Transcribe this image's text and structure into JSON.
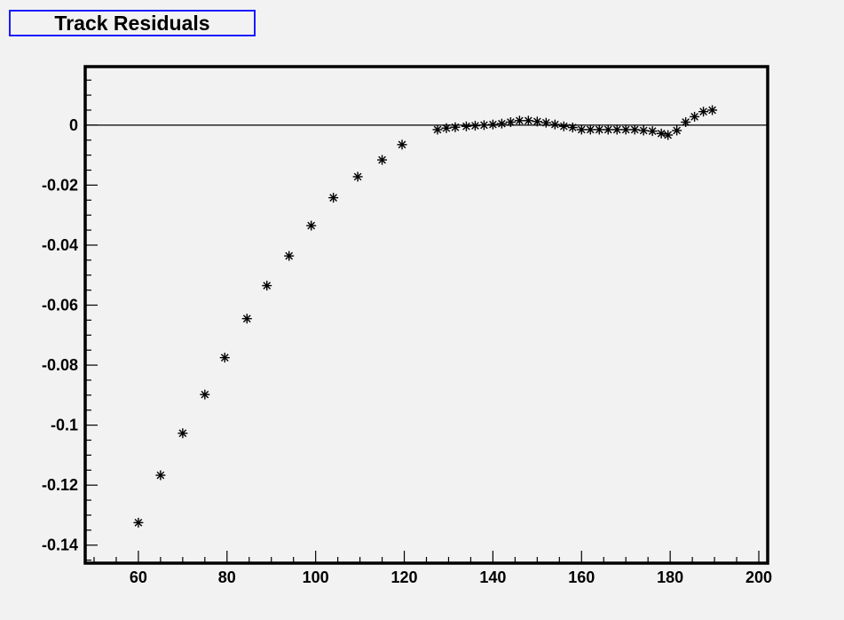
{
  "title": "Track Residuals",
  "chart_data": {
    "type": "scatter",
    "title": "Track Residuals",
    "xlabel": "",
    "ylabel": "",
    "xlim": [
      48,
      202
    ],
    "ylim": [
      -0.146,
      0.0195
    ],
    "grid": false,
    "marker": "asterisk",
    "zero_line": true,
    "x_ticks": [
      "60",
      "80",
      "100",
      "120",
      "140",
      "160",
      "180",
      "200"
    ],
    "y_ticks": [
      "0",
      "-0.02",
      "-0.04",
      "-0.06",
      "-0.08",
      "-0.1",
      "-0.12",
      "-0.14"
    ],
    "points": [
      [
        60,
        -0.1325
      ],
      [
        65,
        -0.1167
      ],
      [
        70,
        -0.1027
      ],
      [
        75,
        -0.0898
      ],
      [
        79.5,
        -0.0775
      ],
      [
        84.5,
        -0.0645
      ],
      [
        89,
        -0.0535
      ],
      [
        94,
        -0.0436
      ],
      [
        99,
        -0.0335
      ],
      [
        104,
        -0.0242
      ],
      [
        109.5,
        -0.0172
      ],
      [
        115,
        -0.0116
      ],
      [
        119.5,
        -0.0065
      ],
      [
        127.5,
        -0.0015
      ],
      [
        129.5,
        -0.001
      ],
      [
        131.5,
        -0.0007
      ],
      [
        134,
        -0.0004
      ],
      [
        136,
        -0.0002
      ],
      [
        138,
        0.0
      ],
      [
        140,
        0.0002
      ],
      [
        142,
        0.0005
      ],
      [
        144,
        0.001
      ],
      [
        146,
        0.0015
      ],
      [
        148,
        0.0015
      ],
      [
        150,
        0.0012
      ],
      [
        152,
        0.0008
      ],
      [
        154,
        0.0002
      ],
      [
        156,
        -0.0004
      ],
      [
        158,
        -0.0008
      ],
      [
        160,
        -0.0015
      ],
      [
        162,
        -0.0015
      ],
      [
        164,
        -0.0015
      ],
      [
        166,
        -0.0015
      ],
      [
        168,
        -0.0015
      ],
      [
        170,
        -0.0015
      ],
      [
        172,
        -0.0015
      ],
      [
        174,
        -0.0018
      ],
      [
        176,
        -0.002
      ],
      [
        178,
        -0.0028
      ],
      [
        179.5,
        -0.0033
      ],
      [
        181.5,
        -0.0018
      ],
      [
        183.5,
        0.001
      ],
      [
        185.5,
        0.0028
      ],
      [
        187.5,
        0.0045
      ],
      [
        189.5,
        0.005
      ]
    ]
  }
}
